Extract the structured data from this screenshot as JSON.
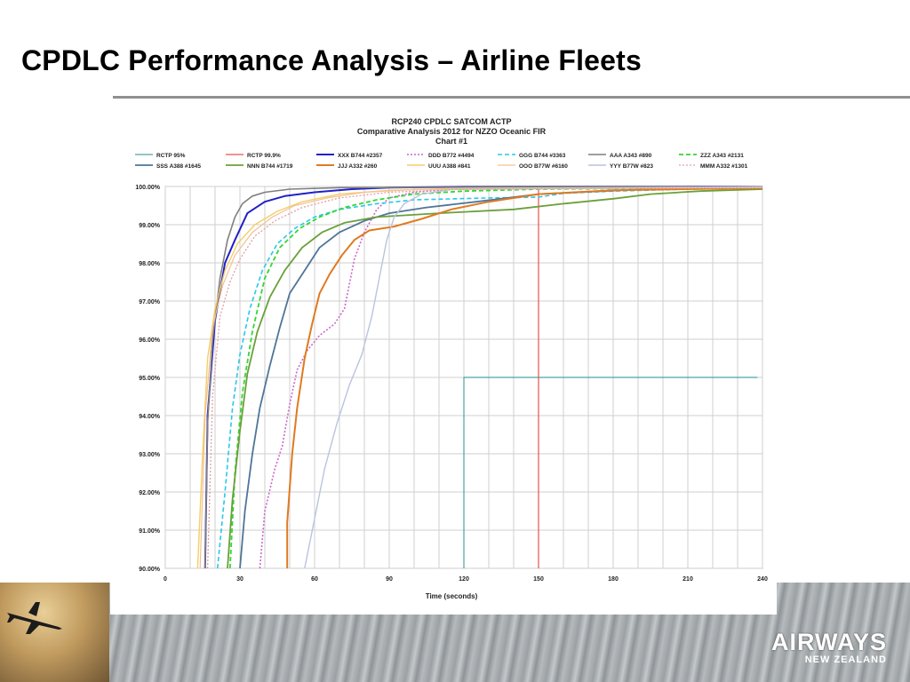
{
  "slide": {
    "title": "CPDLC Performance Analysis – Airline Fleets",
    "brand": "AIRWAYS",
    "brand_sub": "NEW ZEALAND"
  },
  "chart_data": {
    "type": "line",
    "title_lines": [
      "RCP240  CPDLC  SATCOM  ACTP",
      "Comparative Analysis 2012 for  NZZO Oceanic FIR",
      "Chart #1"
    ],
    "xlabel": "Time (seconds)",
    "ylabel": "",
    "xlim": [
      0,
      240
    ],
    "ylim": [
      90,
      100
    ],
    "x_ticks": [
      0,
      30,
      60,
      90,
      120,
      150,
      180,
      210,
      240
    ],
    "y_tick_labels": [
      "90.00%",
      "91.00%",
      "92.00%",
      "93.00%",
      "94.00%",
      "95.00%",
      "96.00%",
      "97.00%",
      "98.00%",
      "99.00%",
      "100.00%"
    ],
    "grid": true,
    "legend_position": "top",
    "series": [
      {
        "name": "RCTP 95%",
        "color": "#4aa3a3",
        "dash": "solid",
        "width": 1.2,
        "points": [
          [
            120,
            90
          ],
          [
            120,
            95
          ],
          [
            238,
            95
          ]
        ]
      },
      {
        "name": "RCTP 99.9%",
        "color": "#e8504a",
        "dash": "solid",
        "width": 1.2,
        "points": [
          [
            150,
            90
          ],
          [
            150,
            100
          ]
        ]
      },
      {
        "name": "XXX B744 #2357",
        "color": "#2020c8",
        "dash": "solid",
        "width": 2,
        "points": [
          [
            16,
            90
          ],
          [
            17,
            94
          ],
          [
            20,
            96.5
          ],
          [
            24,
            98
          ],
          [
            28,
            98.6
          ],
          [
            33,
            99.3
          ],
          [
            40,
            99.6
          ],
          [
            48,
            99.75
          ],
          [
            60,
            99.85
          ],
          [
            75,
            99.93
          ],
          [
            90,
            99.97
          ],
          [
            120,
            99.99
          ],
          [
            240,
            100
          ]
        ]
      },
      {
        "name": "DDD B772 #4494",
        "color": "#cc66cc",
        "dash": "dotted",
        "width": 1.6,
        "points": [
          [
            38,
            90
          ],
          [
            40,
            91.5
          ],
          [
            44,
            92.6
          ],
          [
            47,
            93.2
          ],
          [
            50,
            94.3
          ],
          [
            53,
            95.2
          ],
          [
            57,
            95.7
          ],
          [
            62,
            96.1
          ],
          [
            68,
            96.4
          ],
          [
            72,
            96.8
          ],
          [
            76,
            98.1
          ],
          [
            80,
            98.8
          ],
          [
            85,
            99.4
          ],
          [
            90,
            99.7
          ],
          [
            100,
            99.85
          ],
          [
            115,
            99.93
          ],
          [
            240,
            100
          ]
        ]
      },
      {
        "name": "GGG B744 #3363",
        "color": "#29c8e8",
        "dash": "dashed",
        "width": 1.6,
        "points": [
          [
            21,
            90
          ],
          [
            24,
            92
          ],
          [
            27,
            94.2
          ],
          [
            30,
            95.6
          ],
          [
            34,
            96.8
          ],
          [
            39,
            97.8
          ],
          [
            45,
            98.5
          ],
          [
            52,
            98.9
          ],
          [
            60,
            99.2
          ],
          [
            70,
            99.4
          ],
          [
            85,
            99.55
          ],
          [
            100,
            99.65
          ],
          [
            130,
            99.7
          ],
          [
            150,
            99.72
          ],
          [
            160,
            99.82
          ],
          [
            180,
            99.88
          ],
          [
            210,
            99.93
          ],
          [
            240,
            99.96
          ]
        ]
      },
      {
        "name": "AAA A343 #890",
        "color": "#7f7f7f",
        "dash": "solid",
        "width": 1.6,
        "points": [
          [
            16,
            90
          ],
          [
            17,
            93.8
          ],
          [
            19,
            96
          ],
          [
            22,
            97.6
          ],
          [
            25,
            98.6
          ],
          [
            28,
            99.2
          ],
          [
            31,
            99.55
          ],
          [
            35,
            99.75
          ],
          [
            40,
            99.85
          ],
          [
            50,
            99.93
          ],
          [
            70,
            99.97
          ],
          [
            240,
            100
          ]
        ]
      },
      {
        "name": "ZZZ A343 #2131",
        "color": "#33d633",
        "dash": "dashed",
        "width": 1.8,
        "points": [
          [
            26,
            90
          ],
          [
            28,
            92.5
          ],
          [
            31,
            94.6
          ],
          [
            35,
            96.2
          ],
          [
            40,
            97.6
          ],
          [
            46,
            98.4
          ],
          [
            54,
            98.9
          ],
          [
            62,
            99.2
          ],
          [
            72,
            99.45
          ],
          [
            85,
            99.65
          ],
          [
            100,
            99.8
          ],
          [
            120,
            99.88
          ],
          [
            150,
            99.93
          ],
          [
            240,
            99.98
          ]
        ]
      },
      {
        "name": "SSS A388 #1645",
        "color": "#4f7598",
        "dash": "solid",
        "width": 1.8,
        "points": [
          [
            30,
            90
          ],
          [
            32,
            91.5
          ],
          [
            35,
            93
          ],
          [
            38,
            94.2
          ],
          [
            42,
            95.3
          ],
          [
            46,
            96.3
          ],
          [
            50,
            97.2
          ],
          [
            56,
            97.8
          ],
          [
            62,
            98.4
          ],
          [
            70,
            98.8
          ],
          [
            80,
            99.1
          ],
          [
            90,
            99.3
          ],
          [
            105,
            99.45
          ],
          [
            125,
            99.6
          ],
          [
            150,
            99.8
          ],
          [
            200,
            99.95
          ],
          [
            240,
            99.99
          ]
        ]
      },
      {
        "name": "NNN B744 #1719",
        "color": "#6aa03a",
        "dash": "solid",
        "width": 1.8,
        "points": [
          [
            25,
            90
          ],
          [
            27,
            91.8
          ],
          [
            30,
            93.6
          ],
          [
            33,
            95.1
          ],
          [
            37,
            96.2
          ],
          [
            42,
            97.1
          ],
          [
            48,
            97.8
          ],
          [
            55,
            98.4
          ],
          [
            63,
            98.8
          ],
          [
            72,
            99.05
          ],
          [
            85,
            99.2
          ],
          [
            110,
            99.3
          ],
          [
            140,
            99.4
          ],
          [
            160,
            99.55
          ],
          [
            180,
            99.68
          ],
          [
            195,
            99.8
          ],
          [
            215,
            99.88
          ],
          [
            240,
            99.93
          ]
        ]
      },
      {
        "name": "JJJ A332 #260",
        "color": "#e07a20",
        "dash": "solid",
        "width": 2,
        "points": [
          [
            49,
            90
          ],
          [
            49,
            91.2
          ],
          [
            51,
            93
          ],
          [
            53,
            94.2
          ],
          [
            56,
            95.5
          ],
          [
            59,
            96.4
          ],
          [
            62,
            97.2
          ],
          [
            66,
            97.7
          ],
          [
            71,
            98.2
          ],
          [
            76,
            98.6
          ],
          [
            82,
            98.85
          ],
          [
            92,
            98.95
          ],
          [
            103,
            99.15
          ],
          [
            115,
            99.4
          ],
          [
            130,
            99.6
          ],
          [
            150,
            99.8
          ],
          [
            180,
            99.9
          ],
          [
            240,
            99.96
          ]
        ]
      },
      {
        "name": "UUU A388 #841",
        "color": "#f2cf6a",
        "dash": "solid",
        "width": 1.4,
        "points": [
          [
            13,
            90
          ],
          [
            15,
            93
          ],
          [
            17,
            95.5
          ],
          [
            20,
            96.8
          ],
          [
            24,
            97.8
          ],
          [
            29,
            98.5
          ],
          [
            36,
            99
          ],
          [
            45,
            99.35
          ],
          [
            55,
            99.6
          ],
          [
            70,
            99.8
          ],
          [
            90,
            99.9
          ],
          [
            120,
            99.95
          ],
          [
            240,
            99.99
          ]
        ]
      },
      {
        "name": "OOO B77W #6160",
        "color": "#f4c090",
        "dash": "solid",
        "width": 1.2,
        "points": [
          [
            14,
            90
          ],
          [
            16,
            94
          ],
          [
            19,
            96.3
          ],
          [
            23,
            97.4
          ],
          [
            28,
            98.2
          ],
          [
            35,
            98.8
          ],
          [
            43,
            99.2
          ],
          [
            52,
            99.5
          ],
          [
            65,
            99.7
          ],
          [
            80,
            99.85
          ],
          [
            100,
            99.92
          ],
          [
            240,
            99.97
          ]
        ]
      },
      {
        "name": "YYY B77W #823",
        "color": "#b9c4dd",
        "dash": "solid",
        "width": 1.4,
        "points": [
          [
            56,
            90
          ],
          [
            60,
            91.3
          ],
          [
            64,
            92.6
          ],
          [
            69,
            93.8
          ],
          [
            74,
            94.8
          ],
          [
            79,
            95.6
          ],
          [
            83,
            96.6
          ],
          [
            86,
            97.6
          ],
          [
            89,
            98.6
          ],
          [
            92,
            99.2
          ],
          [
            96,
            99.55
          ],
          [
            103,
            99.8
          ],
          [
            115,
            99.92
          ],
          [
            240,
            100
          ]
        ]
      },
      {
        "name": "MMM A332 #1301",
        "color": "#e0a0a0",
        "dash": "dotted",
        "width": 1.3,
        "points": [
          [
            17,
            90
          ],
          [
            19,
            94.5
          ],
          [
            22,
            96.6
          ],
          [
            26,
            97.5
          ],
          [
            30,
            98.1
          ],
          [
            36,
            98.7
          ],
          [
            44,
            99.1
          ],
          [
            55,
            99.45
          ],
          [
            70,
            99.7
          ],
          [
            90,
            99.85
          ],
          [
            120,
            99.93
          ],
          [
            240,
            99.98
          ]
        ]
      }
    ]
  }
}
